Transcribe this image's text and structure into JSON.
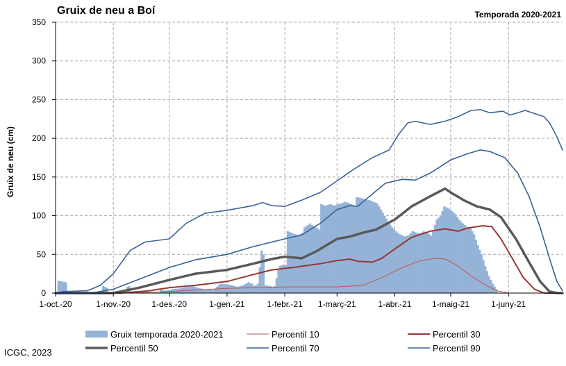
{
  "chart_data": {
    "type": "bar",
    "title": "Gruix de neu a Boí",
    "subtitle": "Temporada 2020-2021",
    "ylabel": "Gruix de neu (cm)",
    "xlabel": "",
    "ylim": [
      0,
      350
    ],
    "yticks": [
      0,
      50,
      100,
      150,
      200,
      250,
      300,
      350
    ],
    "x_start": "2020-10-01",
    "x_end": "2021-06-30",
    "xticks": [
      {
        "label": "1-oct.-20",
        "date": "2020-10-01"
      },
      {
        "label": "1-nov.-20",
        "date": "2020-11-01"
      },
      {
        "label": "1-des.-20",
        "date": "2020-12-01"
      },
      {
        "label": "1-gen.-21",
        "date": "2021-01-01"
      },
      {
        "label": "1-febr.-21",
        "date": "2021-02-01"
      },
      {
        "label": "1-març-21",
        "date": "2021-03-01"
      },
      {
        "label": "1-abr.-21",
        "date": "2021-04-01"
      },
      {
        "label": "1-maig-21",
        "date": "2021-05-01"
      },
      {
        "label": "1-juny-21",
        "date": "2021-06-01"
      }
    ],
    "grid": true,
    "legend_position": "bottom",
    "bar_series": {
      "name": "Gruix temporada 2020-2021",
      "color": "#95b3d7",
      "points": [
        [
          "2020-10-01",
          0
        ],
        [
          "2020-10-02",
          16
        ],
        [
          "2020-10-04",
          15
        ],
        [
          "2020-10-06",
          14
        ],
        [
          "2020-10-07",
          0
        ],
        [
          "2020-10-25",
          0
        ],
        [
          "2020-10-26",
          9
        ],
        [
          "2020-10-28",
          7
        ],
        [
          "2020-10-29",
          0
        ],
        [
          "2020-11-07",
          0
        ],
        [
          "2020-11-08",
          8
        ],
        [
          "2020-11-09",
          9
        ],
        [
          "2020-11-10",
          0
        ],
        [
          "2020-11-25",
          0
        ],
        [
          "2020-11-26",
          4
        ],
        [
          "2020-11-29",
          3
        ],
        [
          "2020-12-02",
          5
        ],
        [
          "2020-12-06",
          6
        ],
        [
          "2020-12-10",
          8
        ],
        [
          "2020-12-13",
          9
        ],
        [
          "2020-12-17",
          6
        ],
        [
          "2020-12-20",
          5
        ],
        [
          "2020-12-24",
          4
        ],
        [
          "2020-12-28",
          12
        ],
        [
          "2021-01-01",
          11
        ],
        [
          "2021-01-03",
          10
        ],
        [
          "2021-01-06",
          8
        ],
        [
          "2021-01-09",
          10
        ],
        [
          "2021-01-12",
          14
        ],
        [
          "2021-01-14",
          12
        ],
        [
          "2021-01-15",
          9
        ],
        [
          "2021-01-17",
          12
        ],
        [
          "2021-01-19",
          55
        ],
        [
          "2021-01-20",
          50
        ],
        [
          "2021-01-21",
          10
        ],
        [
          "2021-01-24",
          9
        ],
        [
          "2021-01-25",
          8
        ],
        [
          "2021-01-26",
          9
        ],
        [
          "2021-01-28",
          30
        ],
        [
          "2021-01-29",
          35
        ],
        [
          "2021-01-31",
          37
        ],
        [
          "2021-02-01",
          36
        ],
        [
          "2021-02-02",
          80
        ],
        [
          "2021-02-04",
          78
        ],
        [
          "2021-02-06",
          76
        ],
        [
          "2021-02-08",
          75
        ],
        [
          "2021-02-10",
          78
        ],
        [
          "2021-02-11",
          85
        ],
        [
          "2021-02-14",
          90
        ],
        [
          "2021-02-15",
          88
        ],
        [
          "2021-02-17",
          85
        ],
        [
          "2021-02-19",
          82
        ],
        [
          "2021-02-20",
          115
        ],
        [
          "2021-02-22",
          113
        ],
        [
          "2021-02-25",
          115
        ],
        [
          "2021-02-27",
          113
        ],
        [
          "2021-03-01",
          115
        ],
        [
          "2021-03-03",
          116
        ],
        [
          "2021-03-05",
          118
        ],
        [
          "2021-03-08",
          115
        ],
        [
          "2021-03-10",
          113
        ],
        [
          "2021-03-11",
          124
        ],
        [
          "2021-03-13",
          123
        ],
        [
          "2021-03-16",
          121
        ],
        [
          "2021-03-18",
          120
        ],
        [
          "2021-03-20",
          118
        ],
        [
          "2021-03-22",
          116
        ],
        [
          "2021-03-24",
          108
        ],
        [
          "2021-03-26",
          100
        ],
        [
          "2021-03-28",
          92
        ],
        [
          "2021-03-30",
          85
        ],
        [
          "2021-04-01",
          80
        ],
        [
          "2021-04-03",
          76
        ],
        [
          "2021-04-06",
          73
        ],
        [
          "2021-04-08",
          75
        ],
        [
          "2021-04-10",
          80
        ],
        [
          "2021-04-12",
          78
        ],
        [
          "2021-04-14",
          77
        ],
        [
          "2021-04-16",
          80
        ],
        [
          "2021-04-18",
          78
        ],
        [
          "2021-04-20",
          74
        ],
        [
          "2021-04-23",
          95
        ],
        [
          "2021-04-25",
          100
        ],
        [
          "2021-04-27",
          112
        ],
        [
          "2021-04-29",
          110
        ],
        [
          "2021-05-01",
          106
        ],
        [
          "2021-05-03",
          102
        ],
        [
          "2021-05-05",
          95
        ],
        [
          "2021-05-07",
          90
        ],
        [
          "2021-05-09",
          86
        ],
        [
          "2021-05-11",
          84
        ],
        [
          "2021-05-13",
          76
        ],
        [
          "2021-05-15",
          62
        ],
        [
          "2021-05-17",
          50
        ],
        [
          "2021-05-19",
          35
        ],
        [
          "2021-05-21",
          22
        ],
        [
          "2021-05-23",
          12
        ],
        [
          "2021-05-25",
          5
        ],
        [
          "2021-05-26",
          0
        ],
        [
          "2021-06-30",
          0
        ]
      ]
    },
    "line_series": [
      {
        "name": "Percentil 10",
        "color": "#c0504d",
        "points": [
          [
            "2020-10-01",
            0
          ],
          [
            "2020-11-10",
            0
          ],
          [
            "2020-12-01",
            2
          ],
          [
            "2021-01-01",
            6
          ],
          [
            "2021-02-01",
            8
          ],
          [
            "2021-03-01",
            8
          ],
          [
            "2021-03-15",
            10
          ],
          [
            "2021-03-25",
            20
          ],
          [
            "2021-04-05",
            33
          ],
          [
            "2021-04-15",
            42
          ],
          [
            "2021-04-23",
            45
          ],
          [
            "2021-04-28",
            44
          ],
          [
            "2021-05-05",
            35
          ],
          [
            "2021-05-12",
            22
          ],
          [
            "2021-05-20",
            10
          ],
          [
            "2021-05-26",
            3
          ],
          [
            "2021-06-01",
            0
          ],
          [
            "2021-06-30",
            0
          ]
        ]
      },
      {
        "name": "Percentil 30",
        "color": "#953735",
        "points": [
          [
            "2020-10-01",
            0
          ],
          [
            "2020-11-05",
            0
          ],
          [
            "2020-11-20",
            3
          ],
          [
            "2020-12-01",
            7
          ],
          [
            "2020-12-15",
            10
          ],
          [
            "2021-01-01",
            15
          ],
          [
            "2021-01-15",
            24
          ],
          [
            "2021-01-25",
            30
          ],
          [
            "2021-02-05",
            33
          ],
          [
            "2021-02-20",
            38
          ],
          [
            "2021-03-01",
            42
          ],
          [
            "2021-03-08",
            44
          ],
          [
            "2021-03-12",
            41
          ],
          [
            "2021-03-20",
            40
          ],
          [
            "2021-03-25",
            45
          ],
          [
            "2021-04-01",
            57
          ],
          [
            "2021-04-10",
            72
          ],
          [
            "2021-04-20",
            80
          ],
          [
            "2021-04-28",
            83
          ],
          [
            "2021-05-05",
            80
          ],
          [
            "2021-05-10",
            84
          ],
          [
            "2021-05-18",
            87
          ],
          [
            "2021-05-23",
            86
          ],
          [
            "2021-05-28",
            70
          ],
          [
            "2021-06-03",
            45
          ],
          [
            "2021-06-09",
            20
          ],
          [
            "2021-06-15",
            5
          ],
          [
            "2021-06-20",
            0
          ],
          [
            "2021-06-30",
            0
          ]
        ]
      },
      {
        "name": "Percentil 50",
        "color": "#595959",
        "points": [
          [
            "2020-10-01",
            0
          ],
          [
            "2020-11-01",
            0
          ],
          [
            "2020-11-15",
            7
          ],
          [
            "2020-12-01",
            17
          ],
          [
            "2020-12-15",
            25
          ],
          [
            "2021-01-01",
            30
          ],
          [
            "2021-01-15",
            38
          ],
          [
            "2021-01-25",
            44
          ],
          [
            "2021-02-01",
            47
          ],
          [
            "2021-02-10",
            45
          ],
          [
            "2021-02-18",
            54
          ],
          [
            "2021-03-01",
            70
          ],
          [
            "2021-03-08",
            73
          ],
          [
            "2021-03-15",
            78
          ],
          [
            "2021-03-22",
            82
          ],
          [
            "2021-04-01",
            95
          ],
          [
            "2021-04-10",
            112
          ],
          [
            "2021-04-20",
            125
          ],
          [
            "2021-04-28",
            135
          ],
          [
            "2021-05-01",
            130
          ],
          [
            "2021-05-08",
            120
          ],
          [
            "2021-05-15",
            112
          ],
          [
            "2021-05-22",
            108
          ],
          [
            "2021-05-28",
            98
          ],
          [
            "2021-06-05",
            70
          ],
          [
            "2021-06-12",
            40
          ],
          [
            "2021-06-18",
            15
          ],
          [
            "2021-06-23",
            2
          ],
          [
            "2021-06-27",
            0
          ],
          [
            "2021-06-30",
            0
          ]
        ]
      },
      {
        "name": "Percentil 70",
        "color": "#376092",
        "points": [
          [
            "2020-10-01",
            0
          ],
          [
            "2020-10-20",
            0
          ],
          [
            "2020-11-01",
            5
          ],
          [
            "2020-11-15",
            18
          ],
          [
            "2020-12-01",
            33
          ],
          [
            "2020-12-15",
            43
          ],
          [
            "2021-01-01",
            50
          ],
          [
            "2021-01-15",
            60
          ],
          [
            "2021-02-01",
            70
          ],
          [
            "2021-02-10",
            75
          ],
          [
            "2021-02-20",
            90
          ],
          [
            "2021-03-01",
            108
          ],
          [
            "2021-03-08",
            113
          ],
          [
            "2021-03-12",
            112
          ],
          [
            "2021-03-20",
            128
          ],
          [
            "2021-03-27",
            142
          ],
          [
            "2021-04-05",
            147
          ],
          [
            "2021-04-12",
            146
          ],
          [
            "2021-04-20",
            155
          ],
          [
            "2021-05-01",
            172
          ],
          [
            "2021-05-10",
            180
          ],
          [
            "2021-05-17",
            185
          ],
          [
            "2021-05-22",
            183
          ],
          [
            "2021-05-30",
            175
          ],
          [
            "2021-06-06",
            155
          ],
          [
            "2021-06-12",
            125
          ],
          [
            "2021-06-18",
            85
          ],
          [
            "2021-06-23",
            45
          ],
          [
            "2021-06-27",
            15
          ],
          [
            "2021-06-30",
            3
          ]
        ]
      },
      {
        "name": "Percentil 90",
        "color": "#3a6497",
        "points": [
          [
            "2020-10-01",
            0
          ],
          [
            "2020-10-05",
            2
          ],
          [
            "2020-10-18",
            3
          ],
          [
            "2020-10-25",
            10
          ],
          [
            "2020-11-01",
            25
          ],
          [
            "2020-11-10",
            55
          ],
          [
            "2020-11-18",
            66
          ],
          [
            "2020-12-01",
            70
          ],
          [
            "2020-12-10",
            90
          ],
          [
            "2020-12-20",
            103
          ],
          [
            "2021-01-01",
            107
          ],
          [
            "2021-01-15",
            113
          ],
          [
            "2021-01-20",
            117
          ],
          [
            "2021-01-25",
            113
          ],
          [
            "2021-02-01",
            112
          ],
          [
            "2021-02-10",
            120
          ],
          [
            "2021-02-20",
            130
          ],
          [
            "2021-03-01",
            145
          ],
          [
            "2021-03-10",
            160
          ],
          [
            "2021-03-20",
            175
          ],
          [
            "2021-03-29",
            185
          ],
          [
            "2021-04-03",
            205
          ],
          [
            "2021-04-08",
            220
          ],
          [
            "2021-04-12",
            222
          ],
          [
            "2021-04-20",
            218
          ],
          [
            "2021-04-28",
            222
          ],
          [
            "2021-05-05",
            228
          ],
          [
            "2021-05-12",
            236
          ],
          [
            "2021-05-17",
            237
          ],
          [
            "2021-05-22",
            233
          ],
          [
            "2021-05-29",
            235
          ],
          [
            "2021-06-02",
            230
          ],
          [
            "2021-06-06",
            233
          ],
          [
            "2021-06-10",
            236
          ],
          [
            "2021-06-15",
            232
          ],
          [
            "2021-06-20",
            228
          ],
          [
            "2021-06-23",
            220
          ],
          [
            "2021-06-27",
            202
          ],
          [
            "2021-06-30",
            185
          ]
        ]
      }
    ]
  },
  "legend": [
    {
      "label": "Gruix temporada 2020-2021",
      "kind": "bar",
      "color": "#95b3d7"
    },
    {
      "label": "Percentil 10",
      "kind": "line",
      "color": "#c0504d",
      "width": 1
    },
    {
      "label": "Percentil 30",
      "kind": "line",
      "color": "#953735",
      "width": 2
    },
    {
      "label": "Percentil 50",
      "kind": "line",
      "color": "#595959",
      "width": 3.5
    },
    {
      "label": "Percentil 70",
      "kind": "line",
      "color": "#376092",
      "width": 1.6
    },
    {
      "label": "Percentil 90",
      "kind": "line",
      "color": "#3a6497",
      "width": 1.6
    }
  ],
  "credit": "ICGC, 2023"
}
